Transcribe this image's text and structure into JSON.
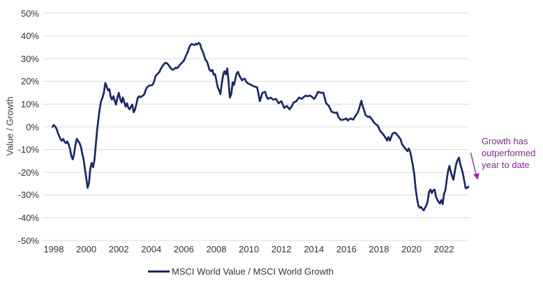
{
  "chart_data": {
    "type": "line",
    "title": "",
    "xlabel": "",
    "ylabel": "Value / Growth",
    "grid": "horizontal",
    "legend_position": "bottom-center",
    "ylim": [
      -50,
      50
    ],
    "xlim": [
      1997.4,
      2023.5
    ],
    "y_ticks": [
      50,
      40,
      30,
      20,
      10,
      0,
      -10,
      -20,
      -30,
      -40,
      -50
    ],
    "y_tick_labels": [
      "50%",
      "40%",
      "30%",
      "20%",
      "10%",
      "0%",
      "-10%",
      "-20%",
      "-30%",
      "-40%",
      "-50%"
    ],
    "x_ticks": [
      1998,
      2000,
      2002,
      2004,
      2006,
      2008,
      2010,
      2012,
      2014,
      2016,
      2018,
      2020,
      2022
    ],
    "x_tick_labels": [
      "1998",
      "2000",
      "2002",
      "2004",
      "2006",
      "2008",
      "2010",
      "2012",
      "2014",
      "2016",
      "2018",
      "2020",
      "2022"
    ],
    "colors": {
      "line": "#19286b",
      "grid": "#d9d9d9",
      "tick_text": "#333333",
      "annotation_text": "#7e2a8e",
      "annotation_arrow": "#a224a8",
      "background": "#ffffff"
    },
    "annotation": {
      "text": "Growth has outperformed year to date"
    },
    "series": [
      {
        "name": "MSCI World Value / MSCI World Growth",
        "color": "#19286b",
        "points": [
          [
            1997.92,
            0
          ],
          [
            1998.0,
            0.8
          ],
          [
            1998.08,
            0.2
          ],
          [
            1998.17,
            -0.8
          ],
          [
            1998.25,
            -2.6
          ],
          [
            1998.33,
            -4
          ],
          [
            1998.42,
            -5.5
          ],
          [
            1998.5,
            -6.1
          ],
          [
            1998.58,
            -5.3
          ],
          [
            1998.67,
            -6.6
          ],
          [
            1998.75,
            -7.2
          ],
          [
            1998.83,
            -6.4
          ],
          [
            1998.92,
            -7.7
          ],
          [
            1999.0,
            -9.7
          ],
          [
            1999.08,
            -12.8
          ],
          [
            1999.17,
            -14.3
          ],
          [
            1999.25,
            -12
          ],
          [
            1999.33,
            -8
          ],
          [
            1999.42,
            -5.2
          ],
          [
            1999.5,
            -6.3
          ],
          [
            1999.58,
            -7
          ],
          [
            1999.67,
            -8.7
          ],
          [
            1999.75,
            -11.7
          ],
          [
            1999.83,
            -14
          ],
          [
            1999.92,
            -18.5
          ],
          [
            2000.0,
            -22.5
          ],
          [
            2000.08,
            -26.8
          ],
          [
            2000.17,
            -24.5
          ],
          [
            2000.25,
            -18.2
          ],
          [
            2000.33,
            -15.9
          ],
          [
            2000.42,
            -17.8
          ],
          [
            2000.5,
            -14.6
          ],
          [
            2000.58,
            -8.6
          ],
          [
            2000.67,
            -1.2
          ],
          [
            2000.75,
            3.6
          ],
          [
            2000.83,
            8
          ],
          [
            2000.92,
            11.4
          ],
          [
            2001.0,
            12.9
          ],
          [
            2001.08,
            15
          ],
          [
            2001.17,
            19.3
          ],
          [
            2001.25,
            18
          ],
          [
            2001.33,
            16.1
          ],
          [
            2001.42,
            16.6
          ],
          [
            2001.5,
            13.2
          ],
          [
            2001.58,
            12
          ],
          [
            2001.67,
            13.5
          ],
          [
            2001.75,
            11.5
          ],
          [
            2001.83,
            9.8
          ],
          [
            2001.92,
            13
          ],
          [
            2002.0,
            15
          ],
          [
            2002.08,
            12.3
          ],
          [
            2002.17,
            10.7
          ],
          [
            2002.25,
            12.9
          ],
          [
            2002.33,
            11
          ],
          [
            2002.42,
            8.9
          ],
          [
            2002.5,
            10.4
          ],
          [
            2002.58,
            8.5
          ],
          [
            2002.67,
            7.7
          ],
          [
            2002.75,
            9
          ],
          [
            2002.83,
            9.8
          ],
          [
            2002.92,
            6.4
          ],
          [
            2003.0,
            7.7
          ],
          [
            2003.08,
            10
          ],
          [
            2003.17,
            12.9
          ],
          [
            2003.25,
            13.5
          ],
          [
            2003.33,
            13
          ],
          [
            2003.42,
            13.5
          ],
          [
            2003.5,
            13.8
          ],
          [
            2003.58,
            14.5
          ],
          [
            2003.67,
            16.6
          ],
          [
            2003.75,
            17.5
          ],
          [
            2003.83,
            18
          ],
          [
            2003.92,
            18.2
          ],
          [
            2004.0,
            18.3
          ],
          [
            2004.08,
            18.5
          ],
          [
            2004.17,
            20
          ],
          [
            2004.25,
            22.1
          ],
          [
            2004.33,
            23
          ],
          [
            2004.42,
            23.6
          ],
          [
            2004.5,
            24.2
          ],
          [
            2004.58,
            25.5
          ],
          [
            2004.67,
            26.6
          ],
          [
            2004.75,
            27.3
          ],
          [
            2004.83,
            28
          ],
          [
            2004.92,
            28.2
          ],
          [
            2005.0,
            27.7
          ],
          [
            2005.08,
            27
          ],
          [
            2005.17,
            26
          ],
          [
            2005.25,
            25.4
          ],
          [
            2005.33,
            25.1
          ],
          [
            2005.42,
            25.6
          ],
          [
            2005.5,
            26.1
          ],
          [
            2005.58,
            25.8
          ],
          [
            2005.67,
            26.4
          ],
          [
            2005.75,
            27.3
          ],
          [
            2005.83,
            27.8
          ],
          [
            2005.92,
            28.5
          ],
          [
            2006.0,
            29.1
          ],
          [
            2006.08,
            30.5
          ],
          [
            2006.17,
            31.9
          ],
          [
            2006.25,
            33.1
          ],
          [
            2006.33,
            35
          ],
          [
            2006.42,
            36.1
          ],
          [
            2006.5,
            36.5
          ],
          [
            2006.58,
            36.2
          ],
          [
            2006.67,
            36
          ],
          [
            2006.75,
            36.6
          ],
          [
            2006.83,
            36.3
          ],
          [
            2006.92,
            37
          ],
          [
            2007.0,
            36.4
          ],
          [
            2007.08,
            34.4
          ],
          [
            2007.17,
            33
          ],
          [
            2007.25,
            31.3
          ],
          [
            2007.33,
            29.5
          ],
          [
            2007.42,
            28.8
          ],
          [
            2007.5,
            27
          ],
          [
            2007.58,
            25.1
          ],
          [
            2007.67,
            24.5
          ],
          [
            2007.75,
            25.1
          ],
          [
            2007.83,
            23
          ],
          [
            2007.92,
            23.2
          ],
          [
            2008.0,
            20.5
          ],
          [
            2008.08,
            17.5
          ],
          [
            2008.17,
            16
          ],
          [
            2008.25,
            14.4
          ],
          [
            2008.33,
            19
          ],
          [
            2008.42,
            23
          ],
          [
            2008.5,
            24.5
          ],
          [
            2008.58,
            23.1
          ],
          [
            2008.67,
            25.7
          ],
          [
            2008.75,
            20
          ],
          [
            2008.83,
            12.9
          ],
          [
            2008.92,
            14.4
          ],
          [
            2009.0,
            19.6
          ],
          [
            2009.08,
            18.4
          ],
          [
            2009.17,
            21.2
          ],
          [
            2009.25,
            23.6
          ],
          [
            2009.33,
            24.2
          ],
          [
            2009.42,
            22.5
          ],
          [
            2009.5,
            21.5
          ],
          [
            2009.58,
            20.5
          ],
          [
            2009.67,
            21
          ],
          [
            2009.75,
            21.2
          ],
          [
            2009.83,
            20
          ],
          [
            2009.92,
            19.2
          ],
          [
            2010.0,
            19
          ],
          [
            2010.17,
            18.3
          ],
          [
            2010.33,
            17.8
          ],
          [
            2010.5,
            17.4
          ],
          [
            2010.58,
            15
          ],
          [
            2010.67,
            11.3
          ],
          [
            2010.75,
            13
          ],
          [
            2010.83,
            15
          ],
          [
            2010.92,
            15.2
          ],
          [
            2011.0,
            15.4
          ],
          [
            2011.08,
            13.5
          ],
          [
            2011.17,
            12.3
          ],
          [
            2011.33,
            12.9
          ],
          [
            2011.5,
            12
          ],
          [
            2011.67,
            12.3
          ],
          [
            2011.83,
            10.4
          ],
          [
            2012.0,
            11.3
          ],
          [
            2012.17,
            8.3
          ],
          [
            2012.33,
            9.2
          ],
          [
            2012.5,
            7.7
          ],
          [
            2012.67,
            9.5
          ],
          [
            2012.75,
            10.7
          ],
          [
            2012.92,
            11.3
          ],
          [
            2013.08,
            12.9
          ],
          [
            2013.25,
            12.3
          ],
          [
            2013.42,
            13.4
          ],
          [
            2013.5,
            13.8
          ],
          [
            2013.58,
            13.4
          ],
          [
            2013.75,
            13.8
          ],
          [
            2013.92,
            13
          ],
          [
            2014.0,
            12.3
          ],
          [
            2014.08,
            12.9
          ],
          [
            2014.25,
            15.4
          ],
          [
            2014.42,
            15
          ],
          [
            2014.58,
            15
          ],
          [
            2014.75,
            10.4
          ],
          [
            2014.92,
            9.2
          ],
          [
            2015.08,
            6.7
          ],
          [
            2015.25,
            6.2
          ],
          [
            2015.42,
            6.3
          ],
          [
            2015.5,
            4.3
          ],
          [
            2015.67,
            3
          ],
          [
            2015.83,
            3.2
          ],
          [
            2016.0,
            3.7
          ],
          [
            2016.08,
            2.8
          ],
          [
            2016.25,
            3.7
          ],
          [
            2016.42,
            3.2
          ],
          [
            2016.5,
            4.3
          ],
          [
            2016.67,
            6
          ],
          [
            2016.75,
            7.4
          ],
          [
            2016.92,
            11.5
          ],
          [
            2017.0,
            9
          ],
          [
            2017.08,
            7.4
          ],
          [
            2017.17,
            5.2
          ],
          [
            2017.33,
            4.3
          ],
          [
            2017.42,
            4.6
          ],
          [
            2017.58,
            3.2
          ],
          [
            2017.67,
            2.1
          ],
          [
            2017.83,
            1
          ],
          [
            2017.92,
            0.6
          ],
          [
            2018.08,
            -1.9
          ],
          [
            2018.17,
            -2.5
          ],
          [
            2018.33,
            -4
          ],
          [
            2018.5,
            -6
          ],
          [
            2018.58,
            -4.5
          ],
          [
            2018.67,
            -6
          ],
          [
            2018.83,
            -3
          ],
          [
            2019.0,
            -2.5
          ],
          [
            2019.17,
            -4
          ],
          [
            2019.33,
            -5.5
          ],
          [
            2019.42,
            -7.7
          ],
          [
            2019.58,
            -9.2
          ],
          [
            2019.75,
            -10.7
          ],
          [
            2019.83,
            -9.5
          ],
          [
            2019.92,
            -11
          ],
          [
            2020.0,
            -13.8
          ],
          [
            2020.08,
            -16.9
          ],
          [
            2020.17,
            -20.9
          ],
          [
            2020.25,
            -27
          ],
          [
            2020.33,
            -31
          ],
          [
            2020.42,
            -34.7
          ],
          [
            2020.5,
            -35.6
          ],
          [
            2020.58,
            -35.2
          ],
          [
            2020.67,
            -36.1
          ],
          [
            2020.75,
            -36.8
          ],
          [
            2020.83,
            -35.6
          ],
          [
            2020.92,
            -34.5
          ],
          [
            2021.0,
            -32.5
          ],
          [
            2021.08,
            -28.5
          ],
          [
            2021.17,
            -27.6
          ],
          [
            2021.25,
            -29.1
          ],
          [
            2021.33,
            -28
          ],
          [
            2021.42,
            -27.6
          ],
          [
            2021.5,
            -30.6
          ],
          [
            2021.58,
            -32
          ],
          [
            2021.67,
            -33.1
          ],
          [
            2021.75,
            -33.7
          ],
          [
            2021.83,
            -32.2
          ],
          [
            2021.92,
            -34
          ],
          [
            2022.0,
            -29.4
          ],
          [
            2022.08,
            -27.9
          ],
          [
            2022.17,
            -23
          ],
          [
            2022.25,
            -19.5
          ],
          [
            2022.33,
            -17.2
          ],
          [
            2022.42,
            -20
          ],
          [
            2022.5,
            -21.8
          ],
          [
            2022.58,
            -23.3
          ],
          [
            2022.67,
            -19.3
          ],
          [
            2022.75,
            -16.3
          ],
          [
            2022.83,
            -14.7
          ],
          [
            2022.92,
            -13.5
          ],
          [
            2023.0,
            -16.5
          ],
          [
            2023.08,
            -18.4
          ],
          [
            2023.17,
            -20.9
          ],
          [
            2023.25,
            -24
          ],
          [
            2023.33,
            -27
          ],
          [
            2023.42,
            -26.9
          ],
          [
            2023.5,
            -26.3
          ]
        ]
      }
    ]
  },
  "legend": {
    "label": "MSCI World Value / MSCI World Growth"
  }
}
